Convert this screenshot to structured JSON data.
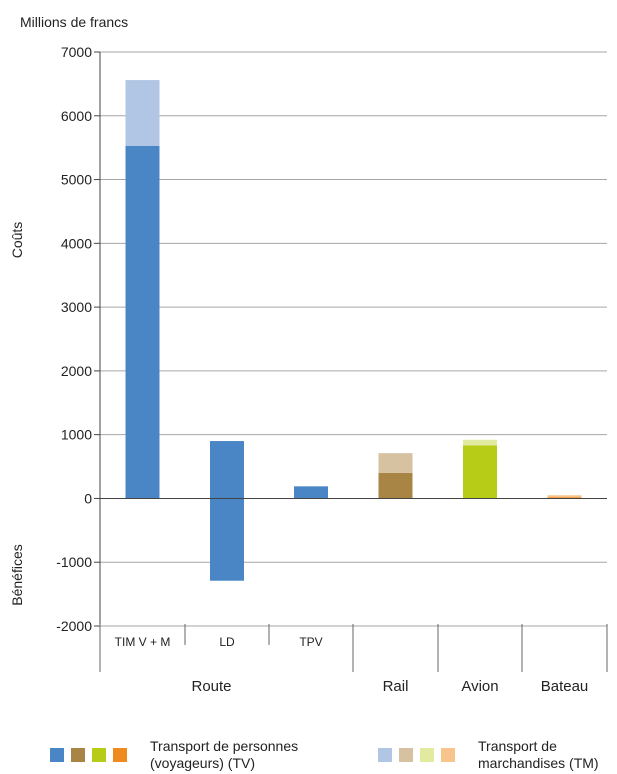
{
  "chart_data": {
    "type": "bar",
    "stacked": true,
    "ylabel_top": "Millions de francs",
    "ylabel_positive": "Coûts",
    "ylabel_negative": "Bénéfices",
    "ylim": [
      -2000,
      7000
    ],
    "yticks": [
      "7000",
      "6000",
      "5000",
      "4000",
      "3000",
      "2000",
      "1000",
      "0",
      "-1000",
      "-2000"
    ],
    "ytick_values": [
      7000,
      6000,
      5000,
      4000,
      3000,
      2000,
      1000,
      0,
      -1000,
      -2000
    ],
    "grid": true,
    "categories": [
      "TIM V + M",
      "LD",
      "TPV",
      "",
      "",
      ""
    ],
    "groups": [
      "Route",
      "Rail",
      "Avion",
      "Bateau"
    ],
    "bars": [
      {
        "category": "TIM V + M",
        "group": "Route",
        "tv": 5530,
        "tm": 1030,
        "tv_color": "#4a86c5",
        "tm_color": "#b1c6e4"
      },
      {
        "category": "LD",
        "group": "Route",
        "tv": 900,
        "tv_negative": -1290,
        "tm": 0,
        "tv_color": "#4a86c5",
        "tm_color": "#b1c6e4"
      },
      {
        "category": "TPV",
        "group": "Route",
        "tv": 190,
        "tm": 0,
        "tv_color": "#4a86c5",
        "tm_color": "#b1c6e4"
      },
      {
        "category": "",
        "group": "Rail",
        "tv": 400,
        "tm": 310,
        "tv_color": "#a88545",
        "tm_color": "#d6c1a0"
      },
      {
        "category": "",
        "group": "Avion",
        "tv": 830,
        "tm": 90,
        "tv_color": "#b6cc16",
        "tm_color": "#e1ea9e"
      },
      {
        "category": "",
        "group": "Bateau",
        "tv": 20,
        "tm": 30,
        "tv_color": "#ef8a1e",
        "tm_color": "#f7c48c"
      }
    ]
  },
  "legend": {
    "tv_label_line1": "Transport de personnes",
    "tv_label_line2": "(voyageurs) (TV)",
    "tm_label_line1": "Transport de",
    "tm_label_line2": "marchandises (TM)",
    "tv_colors": [
      "#4a86c5",
      "#a88545",
      "#b6cc16",
      "#ef8a1e"
    ],
    "tm_colors": [
      "#b1c6e4",
      "#d6c1a0",
      "#e1ea9e",
      "#f7c48c"
    ]
  }
}
